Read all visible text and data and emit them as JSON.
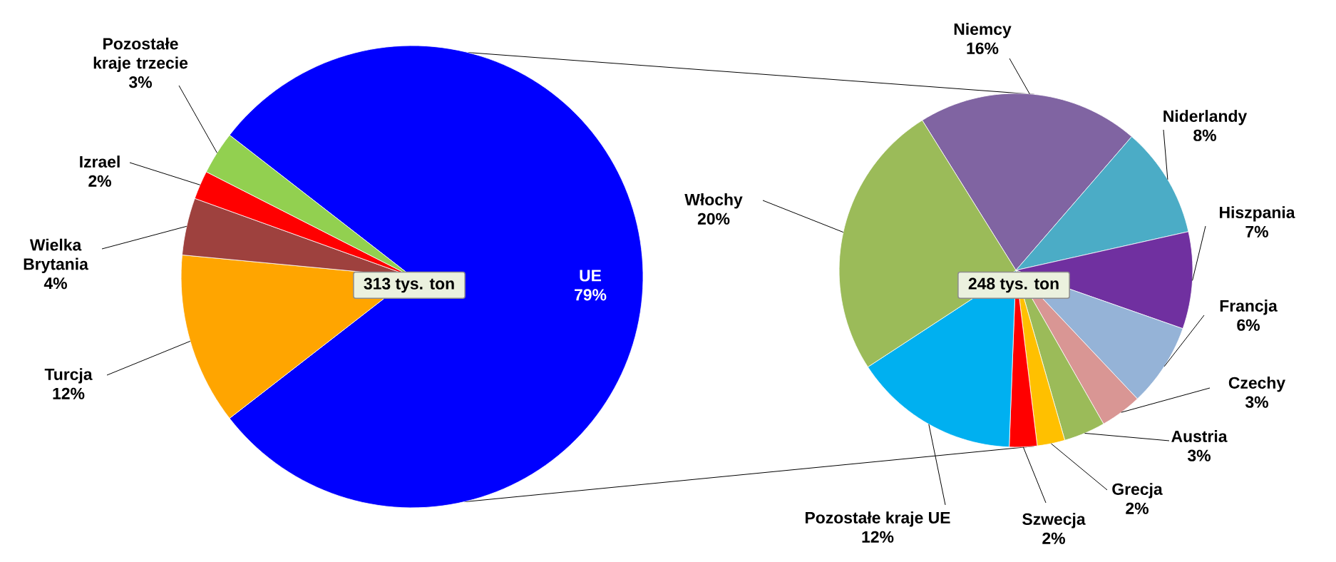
{
  "chart_data": [
    {
      "type": "pie",
      "categories": [
        "UE",
        "Turcja",
        "Wielka Brytania",
        "Izrael",
        "Pozostałe kraje trzecie"
      ],
      "values": [
        79,
        12,
        4,
        2,
        3
      ],
      "value_labels": [
        "79%",
        "12%",
        "4%",
        "2%",
        "3%"
      ],
      "colors": [
        "#0000ff",
        "#ffa500",
        "#9e413e",
        "#ff0000",
        "#92d050"
      ],
      "annotations": [
        "313 tys. ton"
      ]
    },
    {
      "type": "pie",
      "categories": [
        "Niemcy",
        "Niderlandy",
        "Hiszpania",
        "Francja",
        "Czechy",
        "Austria",
        "Grecja",
        "Szwecja",
        "Pozostałe kraje UE",
        "Włochy"
      ],
      "values": [
        16,
        8,
        7,
        6,
        3,
        3,
        2,
        2,
        12,
        20
      ],
      "value_labels": [
        "16%",
        "8%",
        "7%",
        "6%",
        "3%",
        "3%",
        "2%",
        "2%",
        "12%",
        "20%"
      ],
      "colors": [
        "#8064a2",
        "#4bacc6",
        "#7030a0",
        "#95b3d7",
        "#d99694",
        "#9bbb59",
        "#ffc000",
        "#ff0000",
        "#00b0f0",
        "#9bbb59"
      ],
      "annotations": [
        "248 tys. ton"
      ]
    }
  ]
}
